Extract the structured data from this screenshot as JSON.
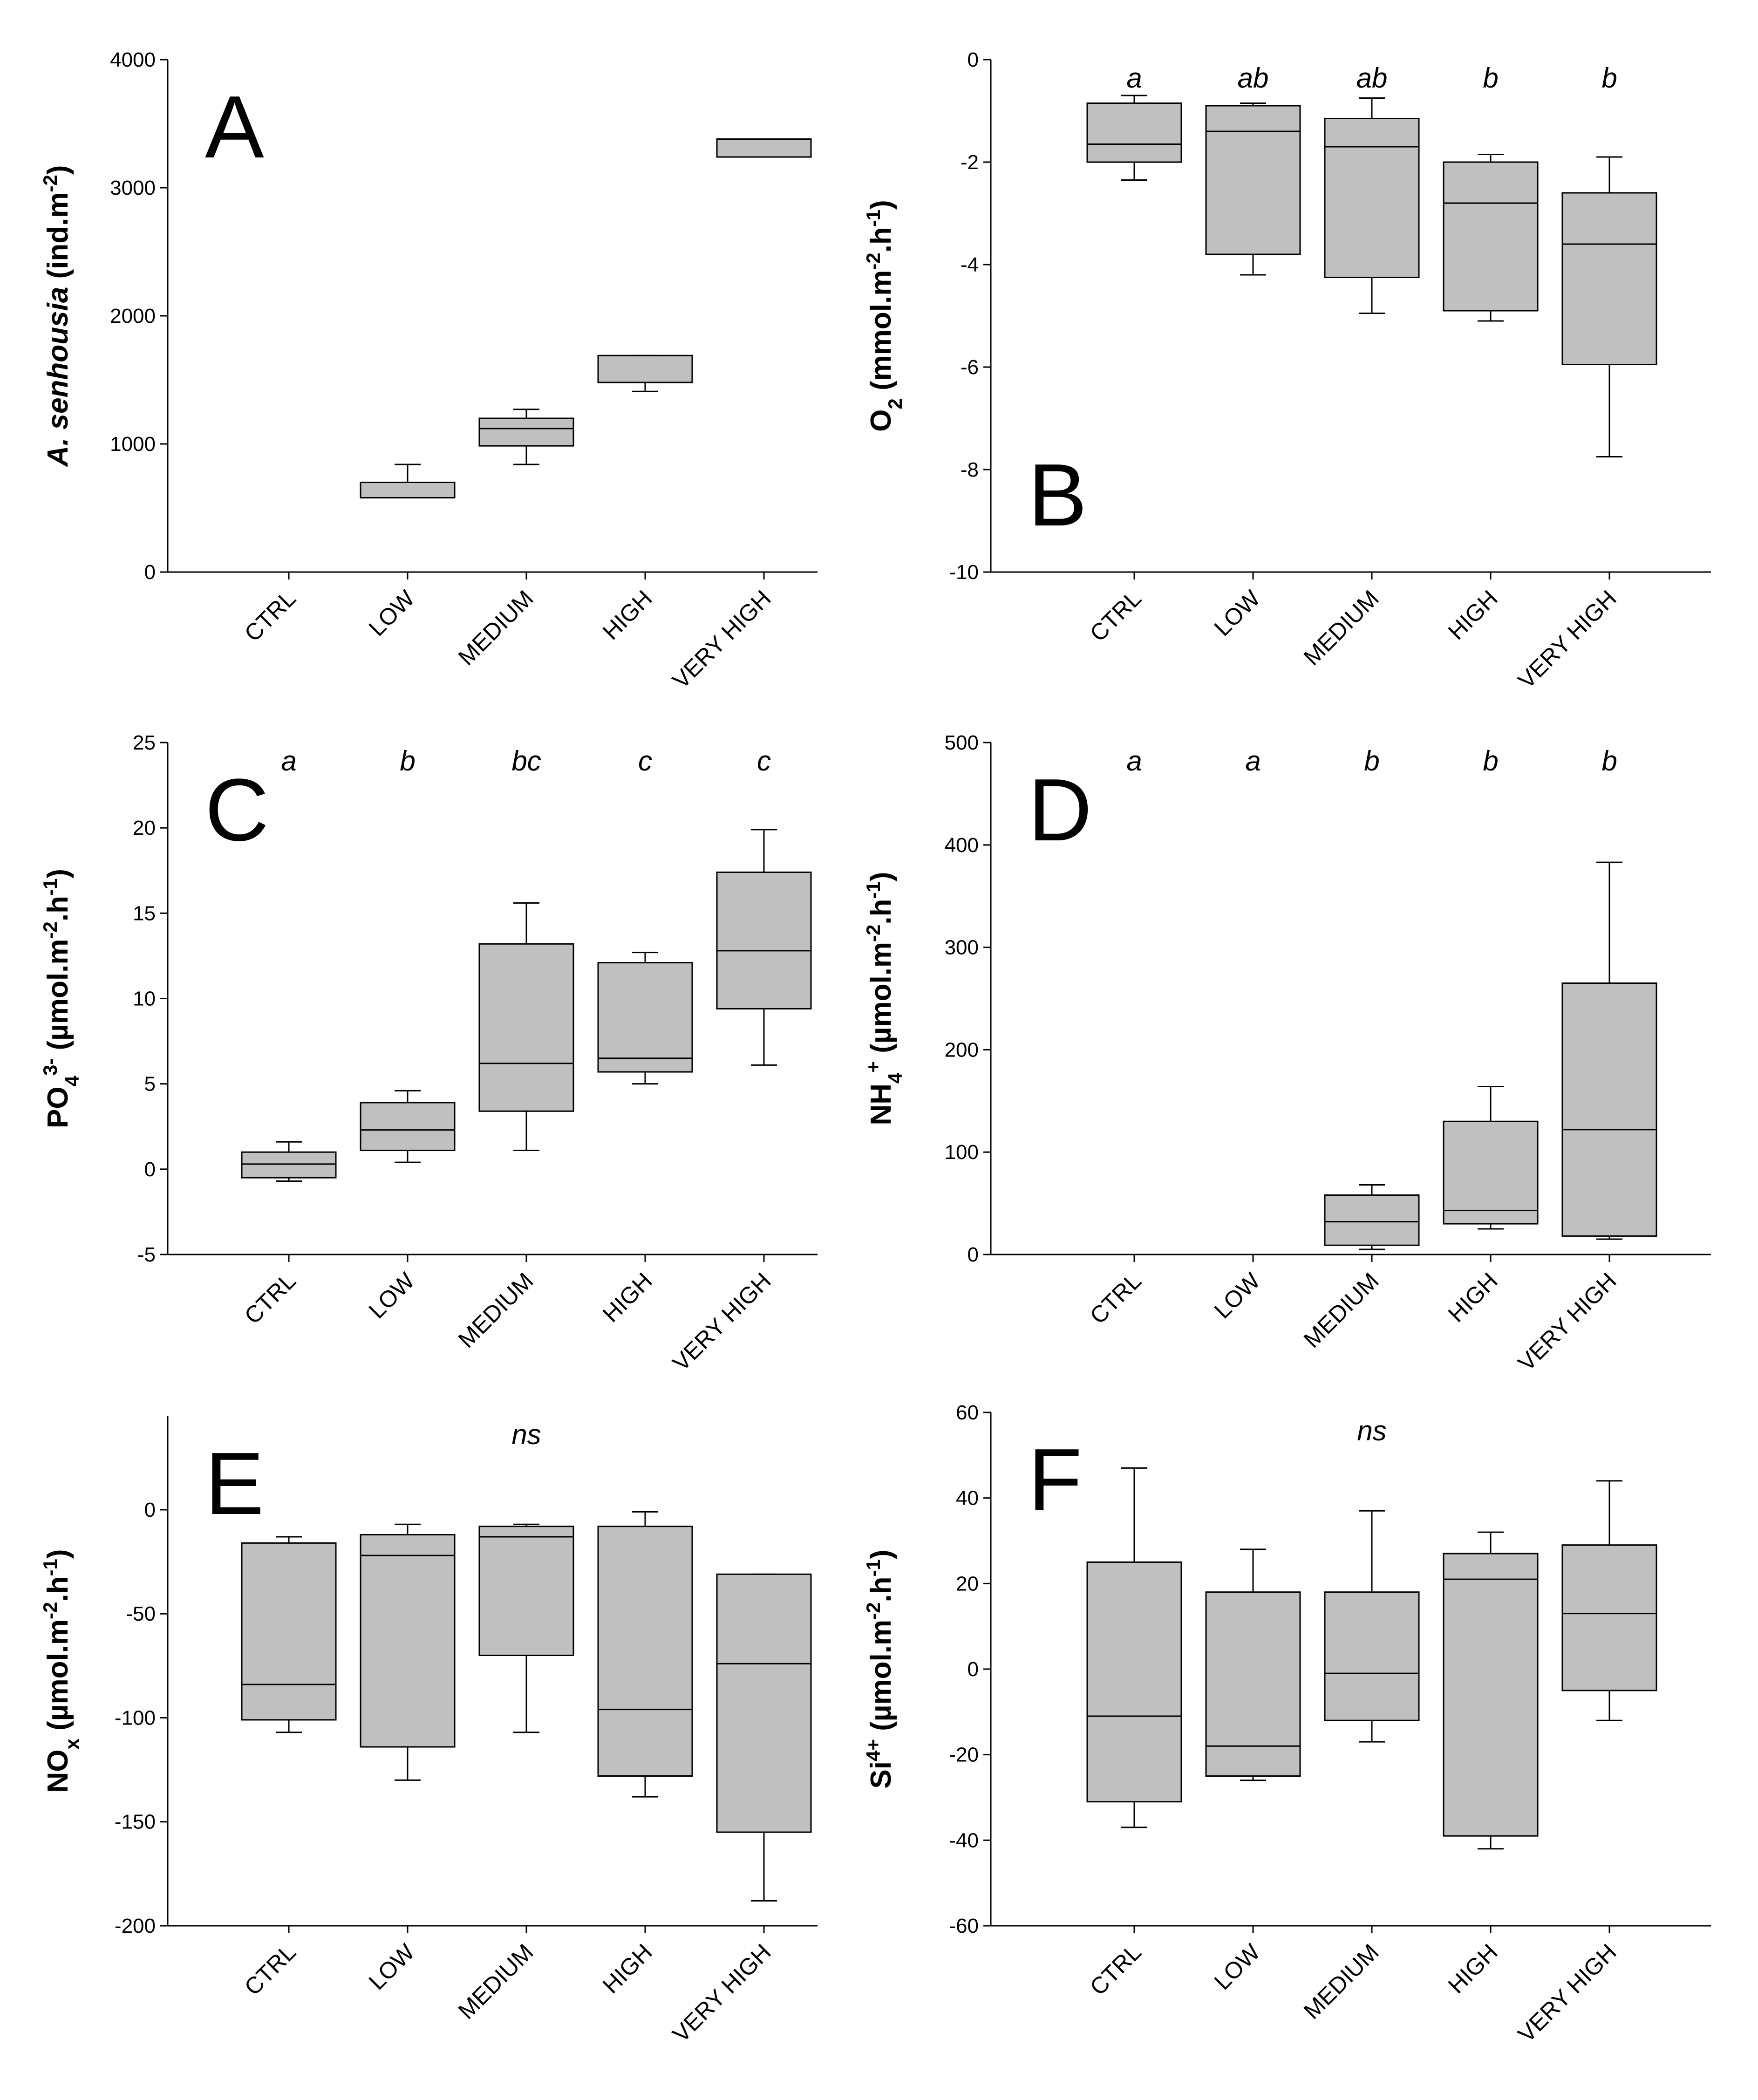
{
  "chart_data": [
    {
      "panel": "A",
      "type": "box",
      "categories": [
        "CTRL",
        "LOW",
        "MEDIUM",
        "HIGH",
        "VERY HIGH"
      ],
      "ylabel_parts": [
        {
          "t": "A. senhousia",
          "italic": true
        },
        {
          "t": " (ind.m"
        },
        {
          "t": "-2",
          "sup": true
        },
        {
          "t": ")"
        }
      ],
      "ylim": [
        0,
        4000
      ],
      "yticks": [
        0,
        1000,
        2000,
        3000,
        4000
      ],
      "significance": [],
      "boxes": [
        null,
        {
          "min": 580,
          "q1": 580,
          "median": 580,
          "q3": 700,
          "max": 840
        },
        {
          "min": 840,
          "q1": 985,
          "median": 1120,
          "q3": 1200,
          "max": 1270
        },
        {
          "min": 1410,
          "q1": 1480,
          "median": 1480,
          "q3": 1690,
          "max": 1690
        },
        {
          "min": 3240,
          "q1": 3240,
          "median": 3240,
          "q3": 3380,
          "max": 3380
        }
      ]
    },
    {
      "panel": "B",
      "type": "box",
      "categories": [
        "CTRL",
        "LOW",
        "MEDIUM",
        "HIGH",
        "VERY HIGH"
      ],
      "ylabel_parts": [
        {
          "t": "O"
        },
        {
          "t": "2",
          "sub": true
        },
        {
          "t": " (mmol.m"
        },
        {
          "t": "-2",
          "sup": true
        },
        {
          "t": ".h"
        },
        {
          "t": "-1",
          "sup": true
        },
        {
          "t": ")"
        }
      ],
      "ylim": [
        -10,
        0
      ],
      "yticks": [
        -10,
        -8,
        -6,
        -4,
        -2,
        0
      ],
      "significance": [
        "a",
        "ab",
        "ab",
        "b",
        "b"
      ],
      "boxes": [
        {
          "min": -2.35,
          "q1": -2.0,
          "median": -1.65,
          "q3": -0.85,
          "max": -0.7
        },
        {
          "min": -4.2,
          "q1": -3.8,
          "median": -1.4,
          "q3": -0.9,
          "max": -0.85
        },
        {
          "min": -4.95,
          "q1": -4.25,
          "median": -1.7,
          "q3": -1.15,
          "max": -0.75
        },
        {
          "min": -5.1,
          "q1": -4.9,
          "median": -2.8,
          "q3": -2.0,
          "max": -1.85
        },
        {
          "min": -7.75,
          "q1": -5.95,
          "median": -3.6,
          "q3": -2.6,
          "max": -1.9
        }
      ]
    },
    {
      "panel": "C",
      "type": "box",
      "categories": [
        "CTRL",
        "LOW",
        "MEDIUM",
        "HIGH",
        "VERY HIGH"
      ],
      "ylabel_parts": [
        {
          "t": "PO"
        },
        {
          "t": "4",
          "sub": true
        },
        {
          "t": "3-",
          "sup": true
        },
        {
          "t": " (µmol.m"
        },
        {
          "t": "-2",
          "sup": true
        },
        {
          "t": ".h"
        },
        {
          "t": "-1",
          "sup": true
        },
        {
          "t": ")"
        }
      ],
      "ylim": [
        -5,
        25
      ],
      "yticks": [
        -5,
        0,
        5,
        10,
        15,
        20,
        25
      ],
      "significance": [
        "a",
        "b",
        "bc",
        "c",
        "c"
      ],
      "boxes": [
        {
          "min": -0.7,
          "q1": -0.5,
          "median": 0.3,
          "q3": 1.0,
          "max": 1.6
        },
        {
          "min": 0.4,
          "q1": 1.1,
          "median": 2.3,
          "q3": 3.9,
          "max": 4.6
        },
        {
          "min": 1.1,
          "q1": 3.4,
          "median": 6.2,
          "q3": 13.2,
          "max": 15.6
        },
        {
          "min": 5.0,
          "q1": 5.7,
          "median": 6.5,
          "q3": 12.1,
          "max": 12.7
        },
        {
          "min": 6.1,
          "q1": 9.4,
          "median": 12.8,
          "q3": 17.4,
          "max": 19.9
        }
      ]
    },
    {
      "panel": "D",
      "type": "box",
      "categories": [
        "CTRL",
        "LOW",
        "MEDIUM",
        "HIGH",
        "VERY HIGH"
      ],
      "ylabel_parts": [
        {
          "t": "NH"
        },
        {
          "t": "4",
          "sub": true
        },
        {
          "t": "+",
          "sup": true
        },
        {
          "t": " (µmol.m"
        },
        {
          "t": "-2",
          "sup": true
        },
        {
          "t": ".h"
        },
        {
          "t": "-1",
          "sup": true
        },
        {
          "t": ")"
        }
      ],
      "ylim": [
        0,
        500
      ],
      "yticks": [
        0,
        100,
        200,
        300,
        400,
        500
      ],
      "significance": [
        "a",
        "a",
        "b",
        "b",
        "b"
      ],
      "boxes": [
        null,
        null,
        {
          "min": 5,
          "q1": 9,
          "median": 32,
          "q3": 58,
          "max": 68
        },
        {
          "min": 25,
          "q1": 30,
          "median": 43,
          "q3": 130,
          "max": 164
        },
        {
          "min": 15,
          "q1": 18,
          "median": 122,
          "q3": 265,
          "max": 383
        }
      ]
    },
    {
      "panel": "E",
      "type": "box",
      "categories": [
        "CTRL",
        "LOW",
        "MEDIUM",
        "HIGH",
        "VERY HIGH"
      ],
      "ylabel_parts": [
        {
          "t": "NO"
        },
        {
          "t": "x",
          "sub": true
        },
        {
          "t": " (µmol.m"
        },
        {
          "t": "-2",
          "sup": true
        },
        {
          "t": ".h"
        },
        {
          "t": "-1",
          "sup": true
        },
        {
          "t": ")"
        }
      ],
      "ylim": [
        -200,
        45
      ],
      "yticks": [
        -200,
        -150,
        -100,
        -50,
        0
      ],
      "significance": [
        "",
        "",
        "ns",
        "",
        ""
      ],
      "boxes": [
        {
          "min": -107,
          "q1": -101,
          "median": -84,
          "q3": -16,
          "max": -13
        },
        {
          "min": -130,
          "q1": -114,
          "median": -22,
          "q3": -12,
          "max": -7
        },
        {
          "min": -107,
          "q1": -70,
          "median": -13,
          "q3": -8,
          "max": -7
        },
        {
          "min": -138,
          "q1": -128,
          "median": -96,
          "q3": -8,
          "max": -1
        },
        {
          "min": -188,
          "q1": -155,
          "median": -74,
          "q3": -31,
          "max": -31
        }
      ]
    },
    {
      "panel": "F",
      "type": "box",
      "categories": [
        "CTRL",
        "LOW",
        "MEDIUM",
        "HIGH",
        "VERY HIGH"
      ],
      "ylabel_parts": [
        {
          "t": "Si"
        },
        {
          "t": "4+",
          "sup": true
        },
        {
          "t": " (µmol.m"
        },
        {
          "t": "-2",
          "sup": true
        },
        {
          "t": ".h"
        },
        {
          "t": "-1",
          "sup": true
        },
        {
          "t": ")"
        }
      ],
      "ylim": [
        -60,
        60
      ],
      "yticks": [
        -60,
        -40,
        -20,
        0,
        20,
        40,
        60
      ],
      "significance": [
        "",
        "",
        "ns",
        "",
        ""
      ],
      "boxes": [
        {
          "min": -37,
          "q1": -31,
          "median": -11,
          "q3": 25,
          "max": 47
        },
        {
          "min": -26,
          "q1": -25,
          "median": -18,
          "q3": 18,
          "max": 28
        },
        {
          "min": -17,
          "q1": -12,
          "median": -1,
          "q3": 18,
          "max": 37
        },
        {
          "min": -42,
          "q1": -39,
          "median": 21,
          "q3": 27,
          "max": 32
        },
        {
          "min": -12,
          "q1": -5,
          "median": 13,
          "q3": 29,
          "max": 44
        }
      ]
    }
  ]
}
